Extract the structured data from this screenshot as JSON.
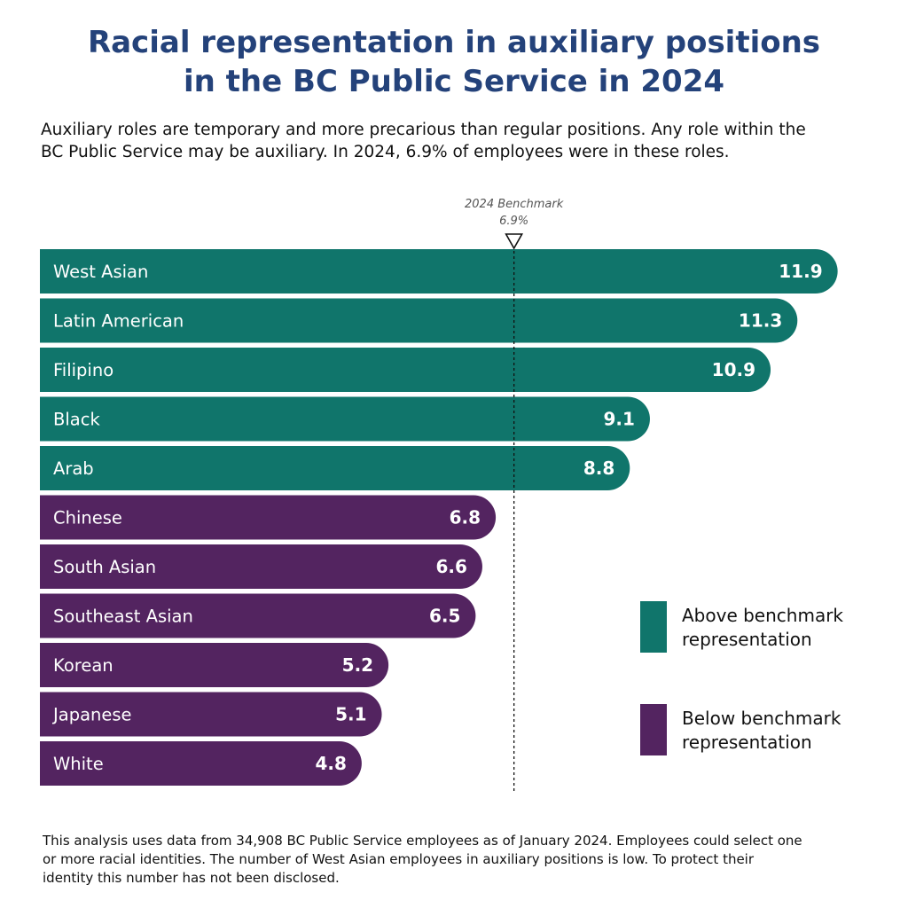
{
  "header": {
    "title_line1": "Racial representation in auxiliary positions",
    "title_line2": "in the BC Public Service in 2024",
    "subtitle_line1": "Auxiliary roles are temporary and more precarious than regular positions. Any role within the",
    "subtitle_line2": "BC Public Service may be auxiliary. In 2024, 6.9% of employees were in these roles."
  },
  "chart_data": {
    "type": "bar",
    "orientation": "horizontal",
    "categories": [
      "West Asian",
      "Latin American",
      "Filipino",
      "Black",
      "Arab",
      "Chinese",
      "South Asian",
      "Southeast Asian",
      "Korean",
      "Japanese",
      "White"
    ],
    "values": [
      11.9,
      11.3,
      10.9,
      9.1,
      8.8,
      6.8,
      6.6,
      6.5,
      5.2,
      5.1,
      4.8
    ],
    "value_labels": [
      "11.9",
      "11.3",
      "10.9",
      "9.1",
      "8.8",
      "6.8",
      "6.6",
      "6.5",
      "5.2",
      "5.1",
      "4.8"
    ],
    "groups": [
      "above",
      "above",
      "above",
      "above",
      "above",
      "below",
      "below",
      "below",
      "below",
      "below",
      "below"
    ],
    "benchmark": {
      "value": 6.9,
      "label_line1": "2024 Benchmark",
      "label_line2": "6.9%"
    },
    "legend": {
      "placement": "right",
      "items": [
        {
          "key": "above",
          "line1": "Above benchmark",
          "line2": "representation",
          "color": "#10756b"
        },
        {
          "key": "below",
          "line1": "Below benchmark",
          "line2": "representation",
          "color": "#532460"
        }
      ]
    },
    "grid": false
  },
  "footnote": {
    "line1": "This analysis uses data from 34,908 BC Public Service employees as of January 2024. Employees could select one",
    "line2": "or more racial identities. The number of West Asian employees in auxiliary positions is low. To protect their",
    "line3": "identity this number has not been disclosed."
  }
}
